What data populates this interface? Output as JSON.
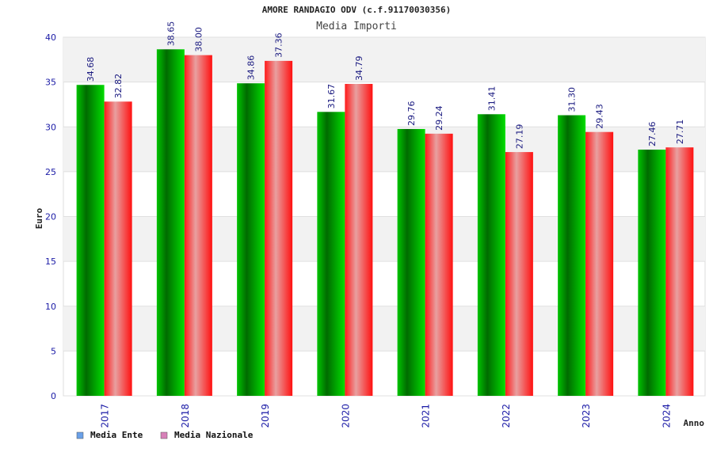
{
  "chart_data": {
    "type": "bar",
    "title": "AMORE RANDAGIO ODV (c.f.91170030356)",
    "subtitle": "Media Importi",
    "xlabel": "Anno",
    "ylabel": "Euro",
    "ylim": [
      0,
      40
    ],
    "yticks": [
      "0",
      "5",
      "10",
      "15",
      "20",
      "25",
      "30",
      "35",
      "40"
    ],
    "grid": true,
    "legend_position": "bottom-left",
    "categories": [
      "2017",
      "2018",
      "2019",
      "2020",
      "2021",
      "2022",
      "2023",
      "2024"
    ],
    "series": [
      {
        "name": "Media Ente",
        "values": [
          34.68,
          38.65,
          34.86,
          31.67,
          29.76,
          31.41,
          31.3,
          27.46
        ],
        "labels": [
          "34.68",
          "38.65",
          "34.86",
          "31.67",
          "29.76",
          "31.41",
          "31.30",
          "27.46"
        ],
        "color": "#00c000",
        "legend_color": "#6aa0e8"
      },
      {
        "name": "Media Nazionale",
        "values": [
          32.82,
          38.0,
          37.36,
          34.79,
          29.24,
          27.19,
          29.43,
          27.71
        ],
        "labels": [
          "32.82",
          "38.00",
          "37.36",
          "34.79",
          "29.24",
          "27.19",
          "29.43",
          "27.71"
        ],
        "color": "#ee1111",
        "legend_color": "#d780b8"
      }
    ]
  }
}
